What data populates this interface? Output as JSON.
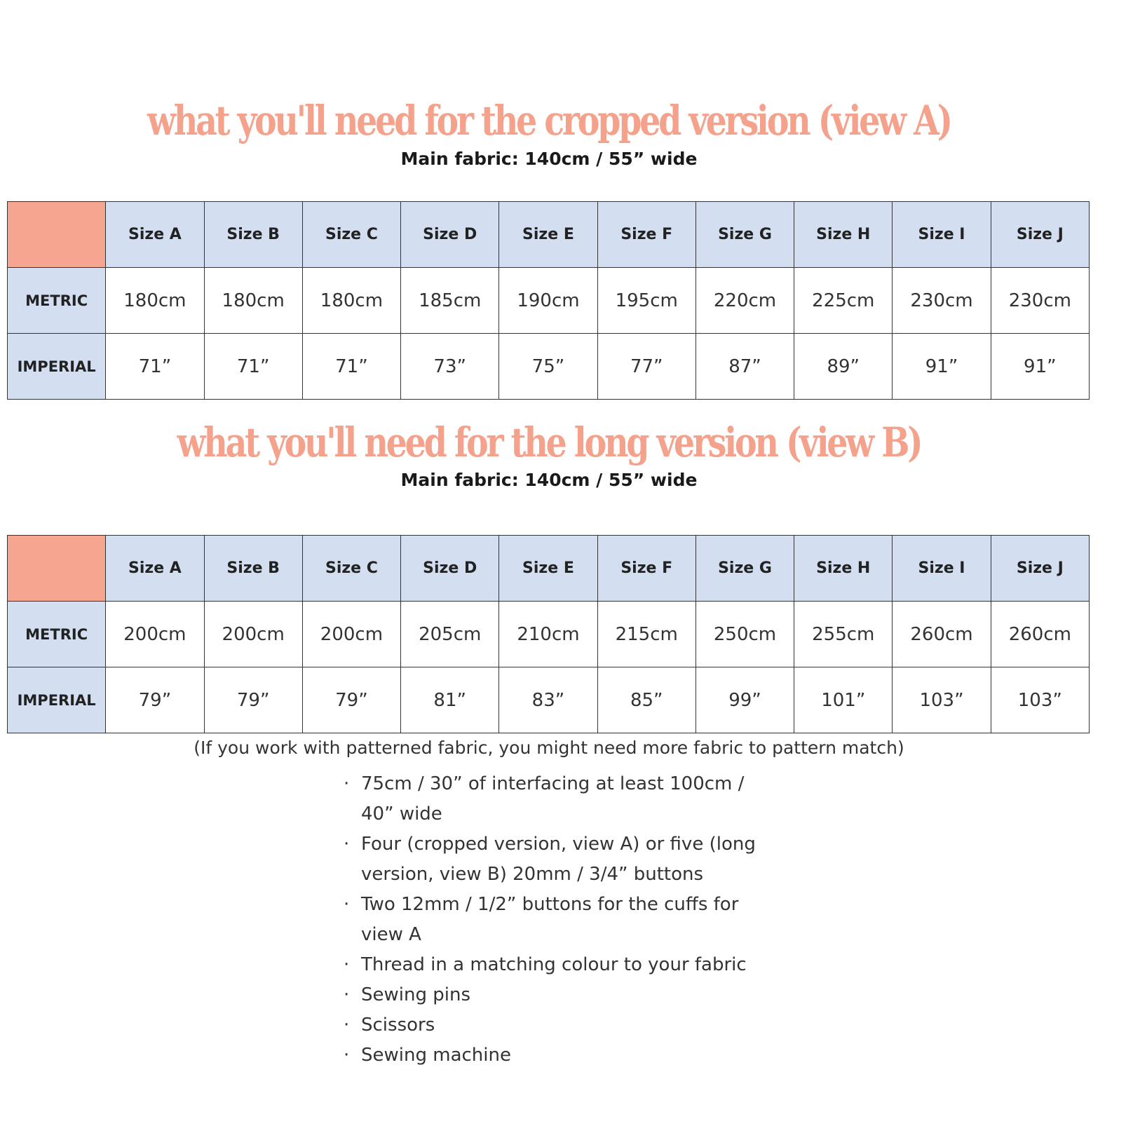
{
  "section_a": {
    "title": "what you'll need for the cropped version (view A)",
    "subtitle": "Main fabric: 140cm / 55” wide",
    "headers": [
      "Size A",
      "Size B",
      "Size C",
      "Size D",
      "Size E",
      "Size F",
      "Size G",
      "Size H",
      "Size I",
      "Size J"
    ],
    "row_labels": [
      "METRIC",
      "IMPERIAL"
    ],
    "metric": [
      "180cm",
      "180cm",
      "180cm",
      "185cm",
      "190cm",
      "195cm",
      "220cm",
      "225cm",
      "230cm",
      "230cm"
    ],
    "imperial": [
      "71”",
      "71”",
      "71”",
      "73”",
      "75”",
      "77”",
      "87”",
      "89”",
      "91”",
      "91”"
    ]
  },
  "section_b": {
    "title": "what you'll need for the long version (view B)",
    "subtitle": "Main fabric: 140cm / 55” wide",
    "headers": [
      "Size A",
      "Size B",
      "Size C",
      "Size D",
      "Size E",
      "Size F",
      "Size G",
      "Size H",
      "Size I",
      "Size J"
    ],
    "row_labels": [
      "METRIC",
      "IMPERIAL"
    ],
    "metric": [
      "200cm",
      "200cm",
      "200cm",
      "205cm",
      "210cm",
      "215cm",
      "250cm",
      "255cm",
      "260cm",
      "260cm"
    ],
    "imperial": [
      "79”",
      "79”",
      "79”",
      "81”",
      "83”",
      "85”",
      "99”",
      "101”",
      "103”",
      "103”"
    ]
  },
  "note": "(If you work with patterned fabric, you might need more fabric to pattern match)",
  "bullet": "·",
  "items": [
    "75cm / 30” of interfacing at least 100cm / 40” wide",
    "Four (cropped version, view A) or five (long version, view B) 20mm / 3/4” buttons",
    "Two 12mm / 1/2” buttons for the cuffs for view A",
    "Thread in a matching colour to your fabric",
    "Sewing pins",
    "Scissors",
    "Sewing machine"
  ],
  "colors": {
    "accent": "#f5a28c",
    "header_bg": "#d3dff0",
    "corner_bg": "#f6a690"
  }
}
